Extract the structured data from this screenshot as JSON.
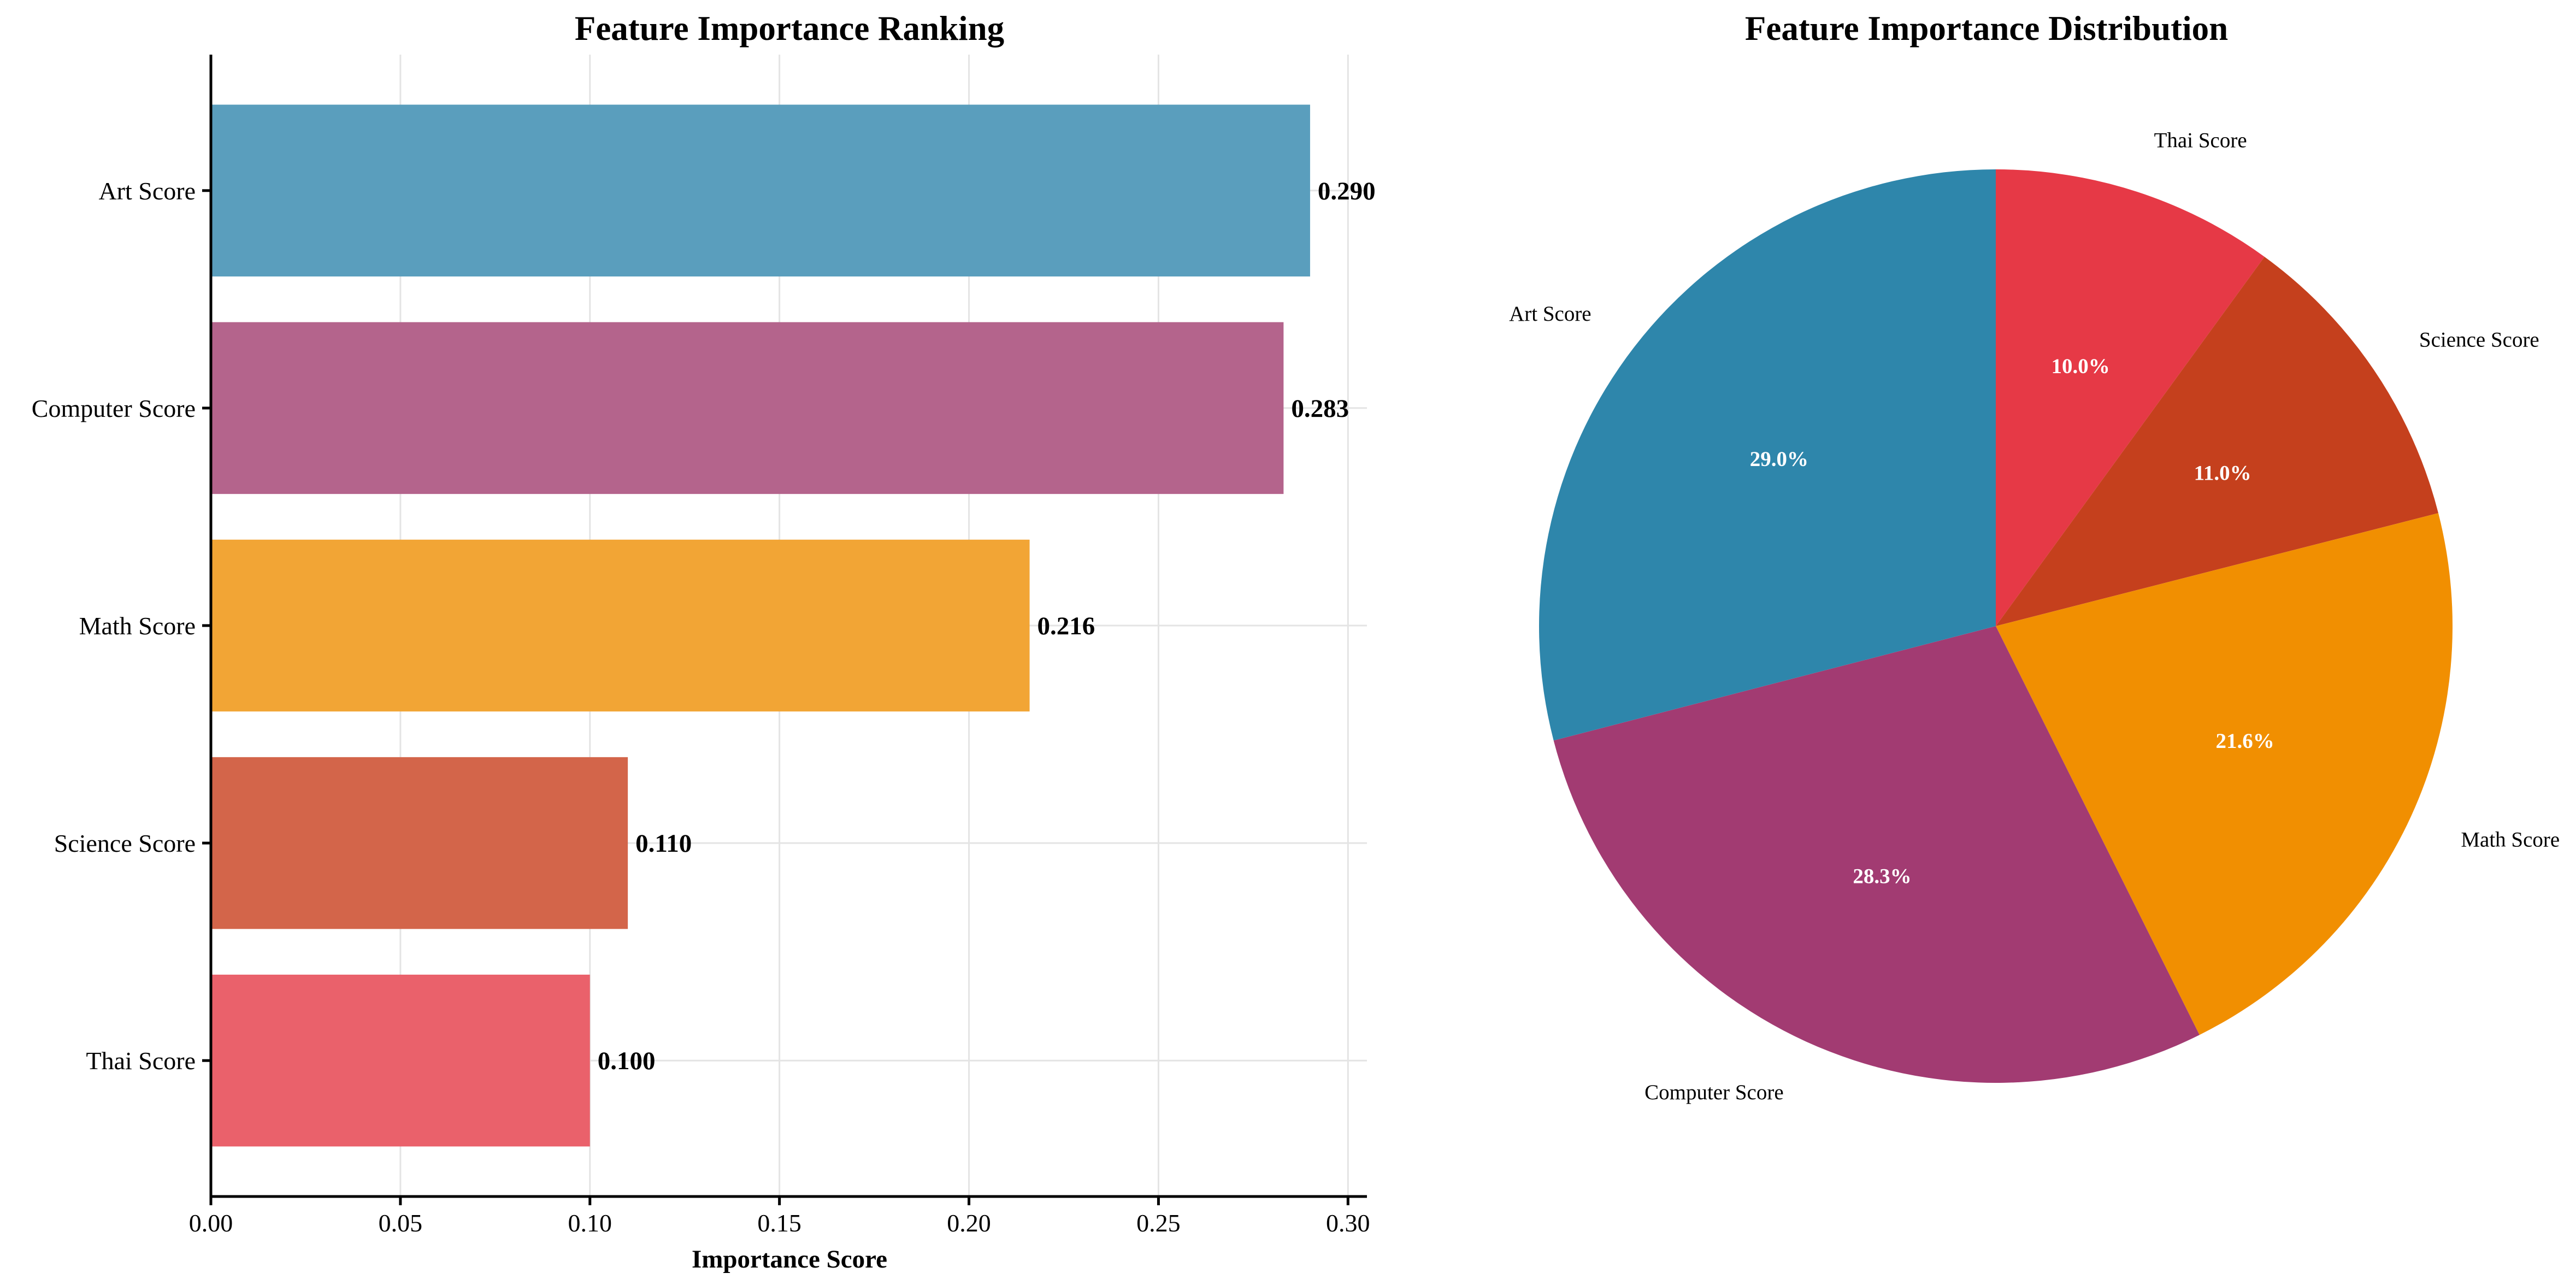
{
  "chart_data": [
    {
      "type": "bar",
      "orientation": "horizontal",
      "title": "Feature Importance Ranking",
      "xlabel": "Importance Score",
      "ylabel": "",
      "categories": [
        "Art Score",
        "Computer Score",
        "Math Score",
        "Science Score",
        "Thai Score"
      ],
      "values": [
        0.29,
        0.283,
        0.216,
        0.11,
        0.1
      ],
      "value_labels": [
        "0.290",
        "0.283",
        "0.216",
        "0.110",
        "0.100"
      ],
      "colors": [
        "#5a9ebd",
        "#b4648c",
        "#f2a535",
        "#d3654a",
        "#ea616b"
      ],
      "xlim": [
        0,
        0.305
      ],
      "xticks": [
        0.0,
        0.05,
        0.1,
        0.15,
        0.2,
        0.25,
        0.3
      ],
      "xtick_labels": [
        "0.00",
        "0.05",
        "0.10",
        "0.15",
        "0.20",
        "0.25",
        "0.30"
      ],
      "grid": true
    },
    {
      "type": "pie",
      "title": "Feature Importance Distribution",
      "slices": [
        {
          "label": "Thai Score",
          "value": 10.0,
          "pct_label": "10.0%",
          "color": "#e63946"
        },
        {
          "label": "Science Score",
          "value": 11.0,
          "pct_label": "11.0%",
          "color": "#c5401d"
        },
        {
          "label": "Math Score",
          "value": 21.6,
          "pct_label": "21.6%",
          "color": "#f18f01"
        },
        {
          "label": "Computer Score",
          "value": 28.3,
          "pct_label": "28.3%",
          "color": "#a23b72"
        },
        {
          "label": "Art Score",
          "value": 29.0,
          "pct_label": "29.0%",
          "color": "#2e86ab"
        }
      ],
      "start_angle": 90,
      "direction": "clockwise"
    }
  ]
}
